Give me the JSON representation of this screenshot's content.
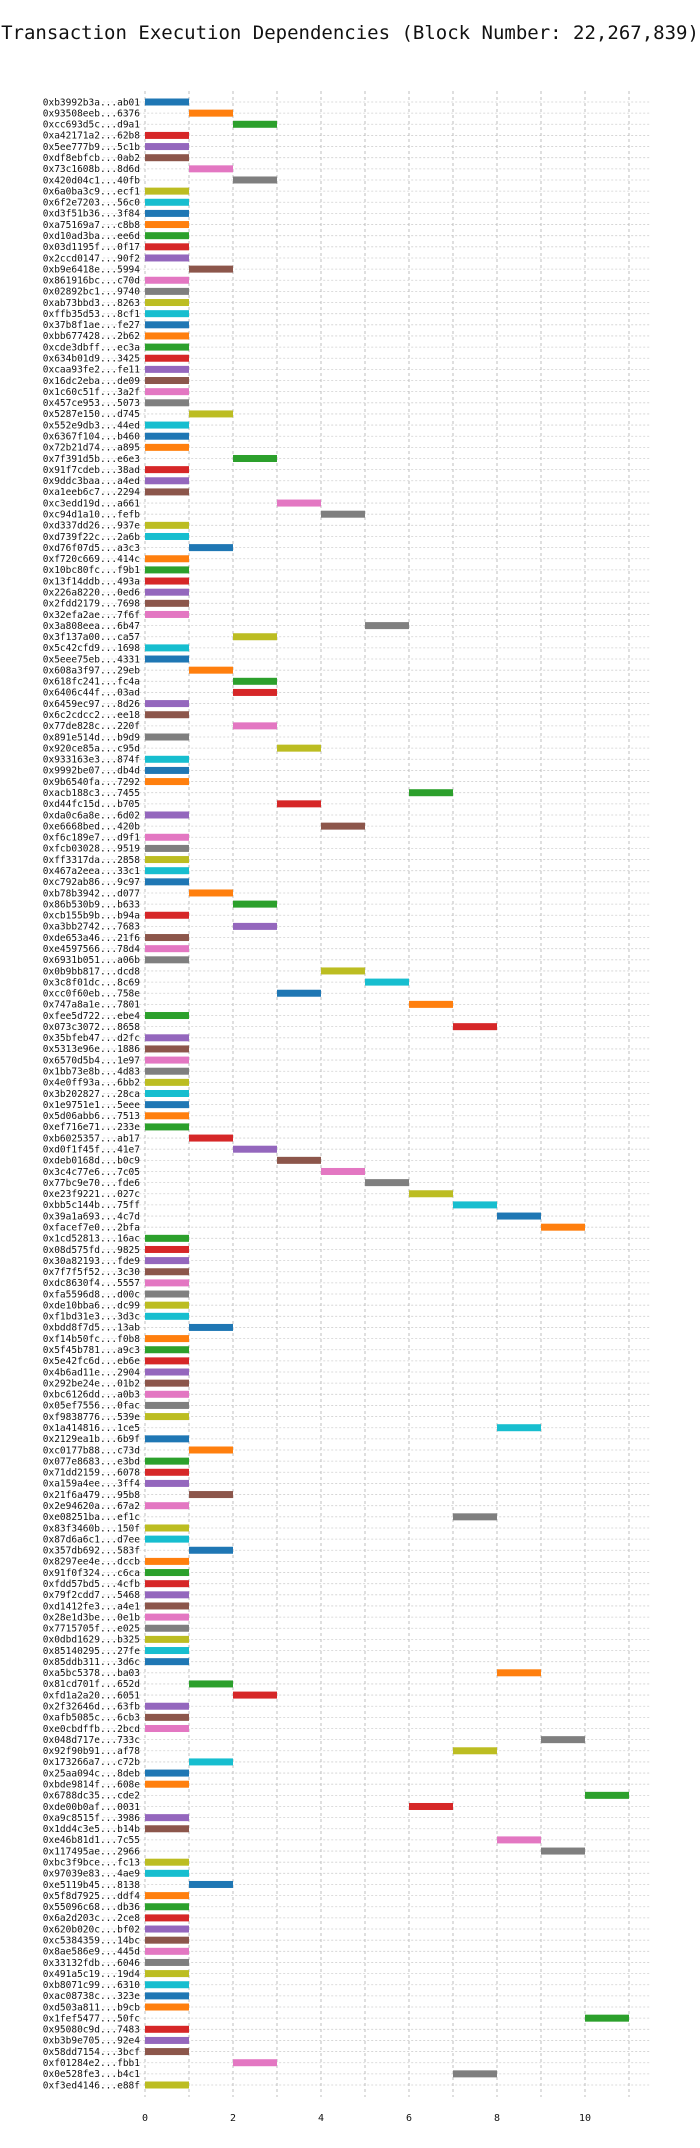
{
  "chart_data": {
    "type": "gantt",
    "title": "Transaction Execution Dependencies (Block Number: 22,267,839)",
    "xlabel": "",
    "ylabel": "",
    "xlim": [
      -1,
      11.8
    ],
    "x_ticks": [
      0,
      2,
      4,
      6,
      8,
      10
    ],
    "grid": true,
    "palette": [
      "#1f77b4",
      "#ff7f0e",
      "#2ca02c",
      "#d62728",
      "#9467bd",
      "#8c564b",
      "#e377c2",
      "#7f7f7f",
      "#bcbd22",
      "#17becf"
    ],
    "transactions": [
      {
        "hash": "0xb3992b3a...ab01",
        "start": 0,
        "end": 1
      },
      {
        "hash": "0x93508eeb...6376",
        "start": 1,
        "end": 2
      },
      {
        "hash": "0xcc693d5c...d9a1",
        "start": 2,
        "end": 3
      },
      {
        "hash": "0xa42171a2...62b8",
        "start": 0,
        "end": 1
      },
      {
        "hash": "0x5ee777b9...5c1b",
        "start": 0,
        "end": 1
      },
      {
        "hash": "0xdf8ebfcb...0ab2",
        "start": 0,
        "end": 1
      },
      {
        "hash": "0x73c1608b...8d6d",
        "start": 1,
        "end": 2
      },
      {
        "hash": "0x420d04c1...40fb",
        "start": 2,
        "end": 3
      },
      {
        "hash": "0x6a0ba3c9...ecf1",
        "start": 0,
        "end": 1
      },
      {
        "hash": "0x6f2e7203...56c0",
        "start": 0,
        "end": 1
      },
      {
        "hash": "0xd3f51b36...3f84",
        "start": 0,
        "end": 1
      },
      {
        "hash": "0xa75169a7...c8b8",
        "start": 0,
        "end": 1
      },
      {
        "hash": "0xd10ad3ba...ee6d",
        "start": 0,
        "end": 1
      },
      {
        "hash": "0x03d1195f...0f17",
        "start": 0,
        "end": 1
      },
      {
        "hash": "0x2ccd0147...90f2",
        "start": 0,
        "end": 1
      },
      {
        "hash": "0xb9e6418e...5994",
        "start": 1,
        "end": 2
      },
      {
        "hash": "0x861916bc...c70d",
        "start": 0,
        "end": 1
      },
      {
        "hash": "0x02892bc1...9740",
        "start": 0,
        "end": 1
      },
      {
        "hash": "0xab73bbd3...8263",
        "start": 0,
        "end": 1
      },
      {
        "hash": "0xffb35d53...8cf1",
        "start": 0,
        "end": 1
      },
      {
        "hash": "0x37b8f1ae...fe27",
        "start": 0,
        "end": 1
      },
      {
        "hash": "0xbb677428...2b62",
        "start": 0,
        "end": 1
      },
      {
        "hash": "0xcde3dbff...ec3a",
        "start": 0,
        "end": 1
      },
      {
        "hash": "0x634b01d9...3425",
        "start": 0,
        "end": 1
      },
      {
        "hash": "0xcaa93fe2...fe11",
        "start": 0,
        "end": 1
      },
      {
        "hash": "0x16dc2eba...de09",
        "start": 0,
        "end": 1
      },
      {
        "hash": "0x1c60c51f...3a2f",
        "start": 0,
        "end": 1
      },
      {
        "hash": "0x457ce953...5073",
        "start": 0,
        "end": 1
      },
      {
        "hash": "0x5287e150...d745",
        "start": 1,
        "end": 2
      },
      {
        "hash": "0x552e9db3...44ed",
        "start": 0,
        "end": 1
      },
      {
        "hash": "0x6367f104...b460",
        "start": 0,
        "end": 1
      },
      {
        "hash": "0x72b21d74...a895",
        "start": 0,
        "end": 1
      },
      {
        "hash": "0x7f391d5b...e6e3",
        "start": 2,
        "end": 3
      },
      {
        "hash": "0x91f7cdeb...38ad",
        "start": 0,
        "end": 1
      },
      {
        "hash": "0x9ddc3baa...a4ed",
        "start": 0,
        "end": 1
      },
      {
        "hash": "0xa1eeb6c7...2294",
        "start": 0,
        "end": 1
      },
      {
        "hash": "0xc3edd19d...a661",
        "start": 3,
        "end": 4
      },
      {
        "hash": "0xc94d1a10...fefb",
        "start": 4,
        "end": 5
      },
      {
        "hash": "0xd337dd26...937e",
        "start": 0,
        "end": 1
      },
      {
        "hash": "0xd739f22c...2a6b",
        "start": 0,
        "end": 1
      },
      {
        "hash": "0xd76f07d5...a3c3",
        "start": 1,
        "end": 2
      },
      {
        "hash": "0xf720c669...414c",
        "start": 0,
        "end": 1
      },
      {
        "hash": "0x10bc80fc...f9b1",
        "start": 0,
        "end": 1
      },
      {
        "hash": "0x13f14ddb...493a",
        "start": 0,
        "end": 1
      },
      {
        "hash": "0x226a8220...0ed6",
        "start": 0,
        "end": 1
      },
      {
        "hash": "0x2fdd2179...7698",
        "start": 0,
        "end": 1
      },
      {
        "hash": "0x32efa2ae...7f6f",
        "start": 0,
        "end": 1
      },
      {
        "hash": "0x3a808eea...6b47",
        "start": 5,
        "end": 6
      },
      {
        "hash": "0x3f137a00...ca57",
        "start": 2,
        "end": 3
      },
      {
        "hash": "0x5c42cfd9...1698",
        "start": 0,
        "end": 1
      },
      {
        "hash": "0x5eee75eb...4331",
        "start": 0,
        "end": 1
      },
      {
        "hash": "0x608a3f97...29eb",
        "start": 1,
        "end": 2
      },
      {
        "hash": "0x618fc241...fc4a",
        "start": 2,
        "end": 3
      },
      {
        "hash": "0x6406c44f...03ad",
        "start": 2,
        "end": 3
      },
      {
        "hash": "0x6459ec97...8d26",
        "start": 0,
        "end": 1
      },
      {
        "hash": "0x6c2cdcc2...ee18",
        "start": 0,
        "end": 1
      },
      {
        "hash": "0x77de828c...220f",
        "start": 2,
        "end": 3
      },
      {
        "hash": "0x891e514d...b9d9",
        "start": 0,
        "end": 1
      },
      {
        "hash": "0x920ce85a...c95d",
        "start": 3,
        "end": 4
      },
      {
        "hash": "0x933163e3...874f",
        "start": 0,
        "end": 1
      },
      {
        "hash": "0x9992be07...db4d",
        "start": 0,
        "end": 1
      },
      {
        "hash": "0x9b6540fa...7292",
        "start": 0,
        "end": 1
      },
      {
        "hash": "0xacb188c3...7455",
        "start": 6,
        "end": 7
      },
      {
        "hash": "0xd44fc15d...b705",
        "start": 3,
        "end": 4
      },
      {
        "hash": "0xda0c6a8e...6d02",
        "start": 0,
        "end": 1
      },
      {
        "hash": "0xe6668bed...420b",
        "start": 4,
        "end": 5
      },
      {
        "hash": "0xf6c189e7...d9f1",
        "start": 0,
        "end": 1
      },
      {
        "hash": "0xfcb03028...9519",
        "start": 0,
        "end": 1
      },
      {
        "hash": "0xff3317da...2858",
        "start": 0,
        "end": 1
      },
      {
        "hash": "0x467a2eea...33c1",
        "start": 0,
        "end": 1
      },
      {
        "hash": "0xc792ab86...9c97",
        "start": 0,
        "end": 1
      },
      {
        "hash": "0xb78b3942...d077",
        "start": 1,
        "end": 2
      },
      {
        "hash": "0x86b530b9...b633",
        "start": 2,
        "end": 3
      },
      {
        "hash": "0xcb155b9b...b94a",
        "start": 0,
        "end": 1
      },
      {
        "hash": "0xa3bb2742...7683",
        "start": 2,
        "end": 3
      },
      {
        "hash": "0xde653a46...21f6",
        "start": 0,
        "end": 1
      },
      {
        "hash": "0xe4597566...78d4",
        "start": 0,
        "end": 1
      },
      {
        "hash": "0x6931b051...a06b",
        "start": 0,
        "end": 1
      },
      {
        "hash": "0x0b9bb817...dcd8",
        "start": 4,
        "end": 5
      },
      {
        "hash": "0x3c8f01dc...8c69",
        "start": 5,
        "end": 6
      },
      {
        "hash": "0xcc0f60eb...758e",
        "start": 3,
        "end": 4
      },
      {
        "hash": "0x747a8a1e...7801",
        "start": 6,
        "end": 7
      },
      {
        "hash": "0xfee5d722...ebe4",
        "start": 0,
        "end": 1
      },
      {
        "hash": "0x073c3072...8658",
        "start": 7,
        "end": 8
      },
      {
        "hash": "0x35bfeb47...d2fc",
        "start": 0,
        "end": 1
      },
      {
        "hash": "0x5313e96e...1886",
        "start": 0,
        "end": 1
      },
      {
        "hash": "0x6570d5b4...1e97",
        "start": 0,
        "end": 1
      },
      {
        "hash": "0x1bb73e8b...4d83",
        "start": 0,
        "end": 1
      },
      {
        "hash": "0x4e0ff93a...6bb2",
        "start": 0,
        "end": 1
      },
      {
        "hash": "0x3b202827...28ca",
        "start": 0,
        "end": 1
      },
      {
        "hash": "0x1e9751e1...5eee",
        "start": 0,
        "end": 1
      },
      {
        "hash": "0x5d06abb6...7513",
        "start": 0,
        "end": 1
      },
      {
        "hash": "0xef716e71...233e",
        "start": 0,
        "end": 1
      },
      {
        "hash": "0xb6025357...ab17",
        "start": 1,
        "end": 2
      },
      {
        "hash": "0xd0f1f45f...41e7",
        "start": 2,
        "end": 3
      },
      {
        "hash": "0xdeb0168d...b0c9",
        "start": 3,
        "end": 4
      },
      {
        "hash": "0x3c4c77e6...7c05",
        "start": 4,
        "end": 5
      },
      {
        "hash": "0x77bc9e70...fde6",
        "start": 5,
        "end": 6
      },
      {
        "hash": "0xe23f9221...027c",
        "start": 6,
        "end": 7
      },
      {
        "hash": "0xbb5c144b...75ff",
        "start": 7,
        "end": 8
      },
      {
        "hash": "0x39a1a693...4c7d",
        "start": 8,
        "end": 9
      },
      {
        "hash": "0xfacef7e0...2bfa",
        "start": 9,
        "end": 10
      },
      {
        "hash": "0x1cd52813...16ac",
        "start": 0,
        "end": 1
      },
      {
        "hash": "0x08d575fd...9825",
        "start": 0,
        "end": 1
      },
      {
        "hash": "0x30a82193...fde9",
        "start": 0,
        "end": 1
      },
      {
        "hash": "0x7f7f5f52...3c30",
        "start": 0,
        "end": 1
      },
      {
        "hash": "0xdc8630f4...5557",
        "start": 0,
        "end": 1
      },
      {
        "hash": "0xfa5596d8...d00c",
        "start": 0,
        "end": 1
      },
      {
        "hash": "0xde10bba6...dc99",
        "start": 0,
        "end": 1
      },
      {
        "hash": "0xf1bd31e3...3d3c",
        "start": 0,
        "end": 1
      },
      {
        "hash": "0xbdd8f7d5...13ab",
        "start": 1,
        "end": 2
      },
      {
        "hash": "0xf14b50fc...f0b8",
        "start": 0,
        "end": 1
      },
      {
        "hash": "0x5f45b781...a9c3",
        "start": 0,
        "end": 1
      },
      {
        "hash": "0x5e42fc6d...eb6e",
        "start": 0,
        "end": 1
      },
      {
        "hash": "0x4b6ad11e...2904",
        "start": 0,
        "end": 1
      },
      {
        "hash": "0x292be24e...01b2",
        "start": 0,
        "end": 1
      },
      {
        "hash": "0xbc6126dd...a0b3",
        "start": 0,
        "end": 1
      },
      {
        "hash": "0x05ef7556...0fac",
        "start": 0,
        "end": 1
      },
      {
        "hash": "0xf9838776...539e",
        "start": 0,
        "end": 1
      },
      {
        "hash": "0x1a414816...1ce5",
        "start": 8,
        "end": 9
      },
      {
        "hash": "0x2129ea1b...6b9f",
        "start": 0,
        "end": 1
      },
      {
        "hash": "0xc0177b88...c73d",
        "start": 1,
        "end": 2
      },
      {
        "hash": "0x077e8683...e3bd",
        "start": 0,
        "end": 1
      },
      {
        "hash": "0x71dd2159...6078",
        "start": 0,
        "end": 1
      },
      {
        "hash": "0xa159a4ee...3ff4",
        "start": 0,
        "end": 1
      },
      {
        "hash": "0x21f6a479...95b8",
        "start": 1,
        "end": 2
      },
      {
        "hash": "0x2e94620a...67a2",
        "start": 0,
        "end": 1
      },
      {
        "hash": "0xe08251ba...ef1c",
        "start": 7,
        "end": 8
      },
      {
        "hash": "0x83f3460b...150f",
        "start": 0,
        "end": 1
      },
      {
        "hash": "0x87d6a6c1...d7ee",
        "start": 0,
        "end": 1
      },
      {
        "hash": "0x357db692...583f",
        "start": 1,
        "end": 2
      },
      {
        "hash": "0x8297ee4e...dccb",
        "start": 0,
        "end": 1
      },
      {
        "hash": "0x91f0f324...c6ca",
        "start": 0,
        "end": 1
      },
      {
        "hash": "0xfdd57bd5...4cfb",
        "start": 0,
        "end": 1
      },
      {
        "hash": "0x79f2cdd7...5468",
        "start": 0,
        "end": 1
      },
      {
        "hash": "0xd1412fe3...a4e1",
        "start": 0,
        "end": 1
      },
      {
        "hash": "0x28e1d3be...0e1b",
        "start": 0,
        "end": 1
      },
      {
        "hash": "0x7715705f...e025",
        "start": 0,
        "end": 1
      },
      {
        "hash": "0x0dbd1629...b325",
        "start": 0,
        "end": 1
      },
      {
        "hash": "0x85140295...27fe",
        "start": 0,
        "end": 1
      },
      {
        "hash": "0x85ddb311...3d6c",
        "start": 0,
        "end": 1
      },
      {
        "hash": "0xa5bc5378...ba03",
        "start": 8,
        "end": 9
      },
      {
        "hash": "0x81cd701f...652d",
        "start": 1,
        "end": 2
      },
      {
        "hash": "0xfd1a2a20...6051",
        "start": 2,
        "end": 3
      },
      {
        "hash": "0x2f32646d...63fb",
        "start": 0,
        "end": 1
      },
      {
        "hash": "0xafb5085c...6cb3",
        "start": 0,
        "end": 1
      },
      {
        "hash": "0xe0cbdffb...2bcd",
        "start": 0,
        "end": 1
      },
      {
        "hash": "0x048d717e...733c",
        "start": 9,
        "end": 10
      },
      {
        "hash": "0x92f90b91...af78",
        "start": 7,
        "end": 8
      },
      {
        "hash": "0x173266a7...c72b",
        "start": 1,
        "end": 2
      },
      {
        "hash": "0x25aa094c...8deb",
        "start": 0,
        "end": 1
      },
      {
        "hash": "0xbde9814f...608e",
        "start": 0,
        "end": 1
      },
      {
        "hash": "0x6788dc35...cde2",
        "start": 10,
        "end": 11
      },
      {
        "hash": "0xde00b0af...0031",
        "start": 6,
        "end": 7
      },
      {
        "hash": "0xa9c8515f...3986",
        "start": 0,
        "end": 1
      },
      {
        "hash": "0x1dd4c3e5...b14b",
        "start": 0,
        "end": 1
      },
      {
        "hash": "0xe46b81d1...7c55",
        "start": 8,
        "end": 9
      },
      {
        "hash": "0x117495ae...2966",
        "start": 9,
        "end": 10
      },
      {
        "hash": "0xbc3f9bce...fc13",
        "start": 0,
        "end": 1
      },
      {
        "hash": "0x97039e83...4ae9",
        "start": 0,
        "end": 1
      },
      {
        "hash": "0xe5119b45...8138",
        "start": 1,
        "end": 2
      },
      {
        "hash": "0x5f8d7925...ddf4",
        "start": 0,
        "end": 1
      },
      {
        "hash": "0x55096c68...db36",
        "start": 0,
        "end": 1
      },
      {
        "hash": "0x6a2d203c...2ce8",
        "start": 0,
        "end": 1
      },
      {
        "hash": "0x620b020c...bf02",
        "start": 0,
        "end": 1
      },
      {
        "hash": "0xc5384359...14bc",
        "start": 0,
        "end": 1
      },
      {
        "hash": "0x8ae586e9...445d",
        "start": 0,
        "end": 1
      },
      {
        "hash": "0x33132fdb...6046",
        "start": 0,
        "end": 1
      },
      {
        "hash": "0x491a5c19...19d4",
        "start": 0,
        "end": 1
      },
      {
        "hash": "0xb8071c99...6310",
        "start": 0,
        "end": 1
      },
      {
        "hash": "0xac08738c...323e",
        "start": 0,
        "end": 1
      },
      {
        "hash": "0xd503a811...b9cb",
        "start": 0,
        "end": 1
      },
      {
        "hash": "0x1fef5477...50fc",
        "start": 10,
        "end": 11
      },
      {
        "hash": "0x95080c9d...7483",
        "start": 0,
        "end": 1
      },
      {
        "hash": "0xb3b9e705...92e4",
        "start": 0,
        "end": 1
      },
      {
        "hash": "0x58dd7154...3bcf",
        "start": 0,
        "end": 1
      },
      {
        "hash": "0xf01284e2...fbb1",
        "start": 2,
        "end": 3
      },
      {
        "hash": "0x0e528fe3...b4c1",
        "start": 7,
        "end": 8
      },
      {
        "hash": "0xf3ed4146...e88f",
        "start": 0,
        "end": 1
      }
    ]
  }
}
